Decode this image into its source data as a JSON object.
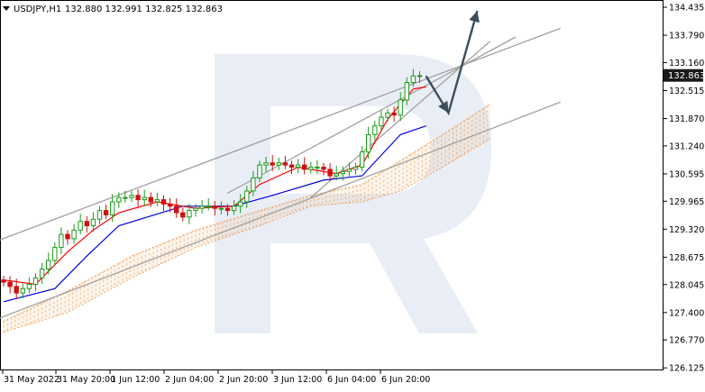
{
  "header": {
    "symbol_label": "USDJPY,H1",
    "ohlc_text": "132.880 132.991 132.825 132.863",
    "dropdown_icon": "triangle-down-icon"
  },
  "watermark": {
    "icon": "rf-logo-icon"
  },
  "colors": {
    "candle_up": "#1a9b1a",
    "candle_down": "#d01010",
    "tenkan": "#ff0000",
    "kijun": "#0000e0",
    "cloud": "#f2a35a",
    "channel": "#a0a0a0",
    "arrow": "#3a4d5c",
    "price_tag_bg": "#1a1a1a"
  },
  "chart_data": {
    "type": "candlestick",
    "symbol": "USDJPY",
    "timeframe": "H1",
    "current_price": "132.863",
    "ylim": [
      126.13,
      134.435
    ],
    "y_ticks": [
      "134.435",
      "133.790",
      "133.160",
      "132.515",
      "131.870",
      "131.240",
      "130.595",
      "129.965",
      "129.320",
      "128.675",
      "128.045",
      "127.400",
      "126.770",
      "126.125"
    ],
    "x_ticks": [
      "31 May 2022",
      "31 May 20:00",
      "1 Jun 12:00",
      "2 Jun 04:00",
      "2 Jun 20:00",
      "3 Jun 12:00",
      "6 Jun 04:00",
      "6 Jun 20:00"
    ],
    "close_series": [
      128.1,
      128.0,
      127.85,
      127.95,
      128.05,
      128.2,
      128.4,
      128.6,
      128.9,
      129.2,
      129.1,
      129.3,
      129.5,
      129.4,
      129.55,
      129.75,
      129.65,
      129.95,
      130.05,
      130.05,
      130.1,
      130.0,
      130.05,
      129.95,
      130.0,
      129.9,
      129.85,
      129.7,
      129.6,
      129.75,
      129.8,
      129.85,
      129.85,
      129.8,
      129.8,
      129.75,
      129.85,
      129.95,
      130.2,
      130.5,
      130.8,
      130.85,
      130.8,
      130.85,
      130.8,
      130.75,
      130.8,
      130.7,
      130.75,
      130.75,
      130.7,
      130.55,
      130.6,
      130.65,
      130.7,
      130.75,
      131.1,
      131.5,
      131.7,
      131.9,
      132.0,
      131.95,
      132.3,
      132.7,
      132.85,
      132.86
    ],
    "tenkan_sen": [
      [
        0,
        128.15
      ],
      [
        5,
        128.05
      ],
      [
        10,
        128.8
      ],
      [
        14,
        129.3
      ],
      [
        18,
        129.7
      ],
      [
        24,
        129.95
      ],
      [
        30,
        129.8
      ],
      [
        36,
        129.85
      ],
      [
        40,
        130.35
      ],
      [
        46,
        130.75
      ],
      [
        52,
        130.6
      ],
      [
        56,
        130.8
      ],
      [
        60,
        131.85
      ],
      [
        64,
        132.55
      ],
      [
        66,
        132.6
      ]
    ],
    "kijun_sen": [
      [
        0,
        127.65
      ],
      [
        8,
        127.95
      ],
      [
        13,
        128.7
      ],
      [
        18,
        129.4
      ],
      [
        28,
        129.85
      ],
      [
        36,
        129.85
      ],
      [
        42,
        130.1
      ],
      [
        50,
        130.45
      ],
      [
        56,
        130.55
      ],
      [
        62,
        131.5
      ],
      [
        66,
        131.7
      ]
    ],
    "cloud_upper": [
      [
        0,
        127.2
      ],
      [
        10,
        127.9
      ],
      [
        20,
        128.7
      ],
      [
        30,
        129.3
      ],
      [
        40,
        129.75
      ],
      [
        48,
        130.1
      ],
      [
        56,
        130.35
      ],
      [
        62,
        130.9
      ],
      [
        68,
        131.45
      ],
      [
        76,
        132.2
      ]
    ],
    "cloud_lower": [
      [
        0,
        126.95
      ],
      [
        10,
        127.4
      ],
      [
        20,
        128.2
      ],
      [
        30,
        128.9
      ],
      [
        40,
        129.4
      ],
      [
        48,
        129.85
      ],
      [
        56,
        129.95
      ],
      [
        62,
        130.2
      ],
      [
        68,
        130.7
      ],
      [
        76,
        131.4
      ]
    ],
    "channel_lines": [
      [
        [
          -1,
          129.05
        ],
        [
          87,
          133.95
        ]
      ],
      [
        [
          -1,
          127.25
        ],
        [
          87,
          132.25
        ]
      ],
      [
        [
          35,
          130.15
        ],
        [
          80,
          133.75
        ]
      ],
      [
        [
          48,
          130.05
        ],
        [
          76,
          133.65
        ]
      ]
    ],
    "forecast_arrow": [
      [
        66,
        132.85
      ],
      [
        69.5,
        132.0
      ],
      [
        74,
        134.35
      ]
    ],
    "grid": false,
    "legend": "none"
  }
}
